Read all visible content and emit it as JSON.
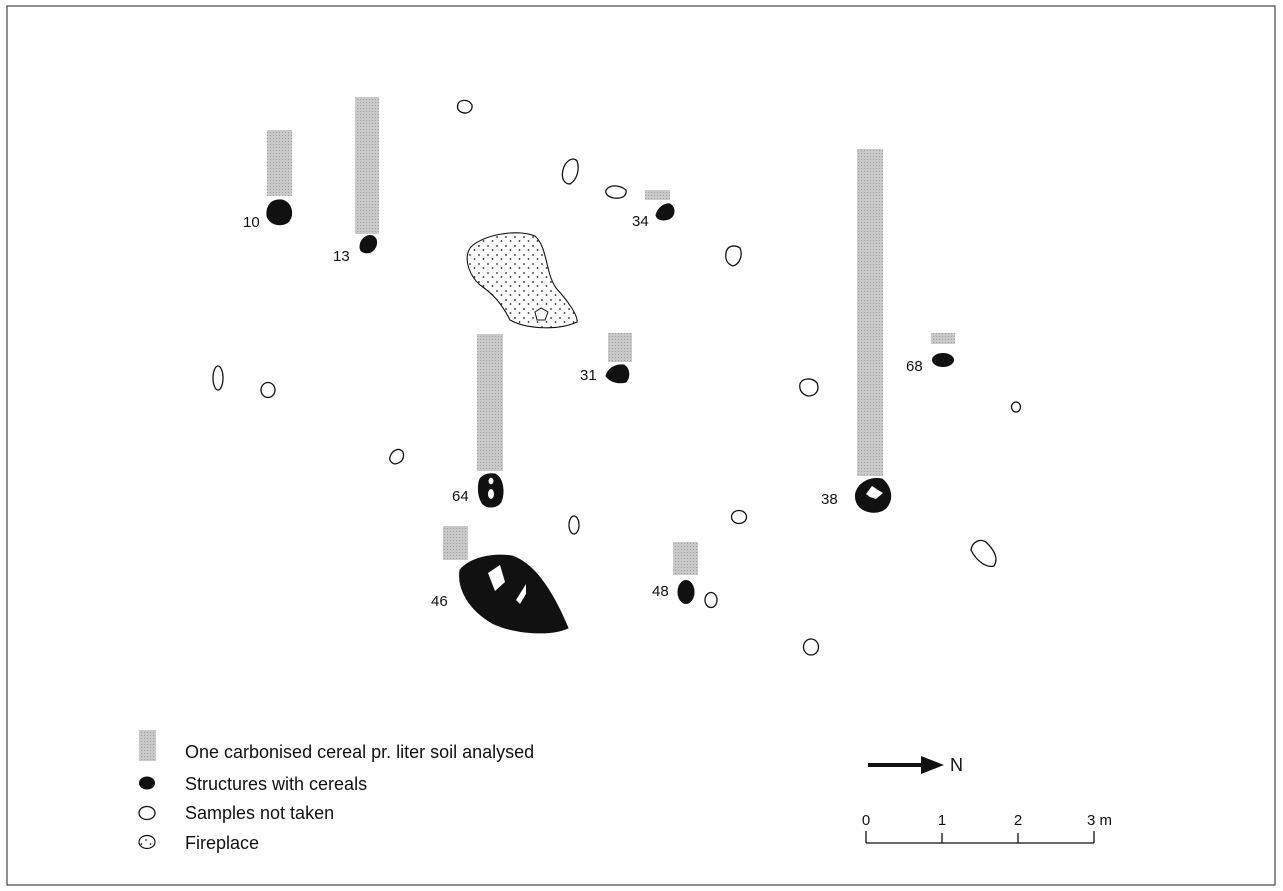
{
  "features": [
    {
      "id": "f10",
      "label": "10",
      "cereals": true
    },
    {
      "id": "f13",
      "label": "13",
      "cereals": true
    },
    {
      "id": "f34",
      "label": "34",
      "cereals": true
    },
    {
      "id": "f31",
      "label": "31",
      "cereals": true
    },
    {
      "id": "f64",
      "label": "64",
      "cereals": true
    },
    {
      "id": "f46",
      "label": "46",
      "cereals": true
    },
    {
      "id": "f48",
      "label": "48",
      "cereals": true
    },
    {
      "id": "f38",
      "label": "38",
      "cereals": true
    },
    {
      "id": "f68",
      "label": "68",
      "cereals": true
    }
  ],
  "legend": {
    "bar": "One carbonised cereal pr. liter soil analysed",
    "structures": "Structures with cereals",
    "not_taken": "Samples not taken",
    "fireplace": "Fireplace"
  },
  "north_label": "N",
  "scale": {
    "ticks": [
      "0",
      "1",
      "2",
      "3"
    ],
    "unit_suffix": " m"
  },
  "colors": {
    "structure_fill": "#111111",
    "bar_fill": "#c6c6c6",
    "frame": "#444444"
  }
}
